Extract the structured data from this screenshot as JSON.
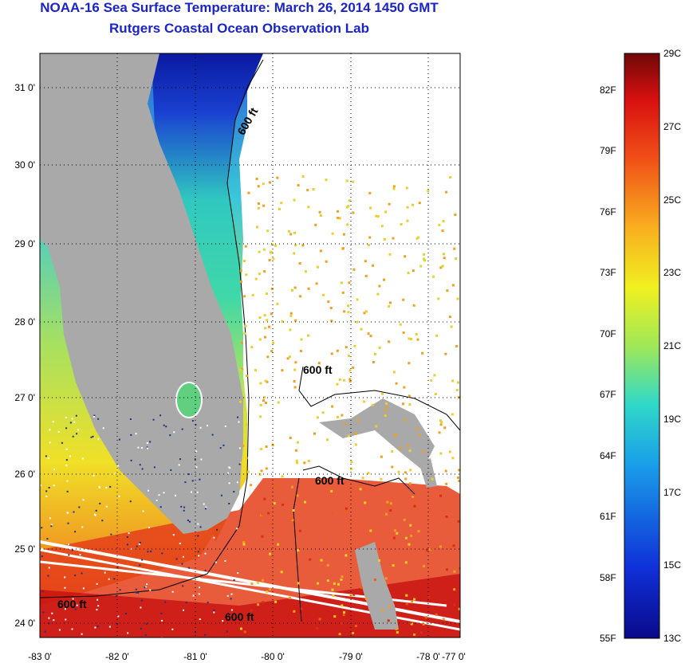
{
  "title": "NOAA-16 Sea Surface Temperature:  March 26, 2014 1450 GMT",
  "subtitle": "Rutgers Coastal Ocean Observation Lab",
  "lat_labels": [
    "31 0'",
    "30 0'",
    "29 0'",
    "28 0'",
    "27 0'",
    "26 0'",
    "25 0'",
    "24 0'"
  ],
  "lon_labels": [
    "-83 0'",
    "-82 0'",
    "-81 0'",
    "-80 0'",
    "-79 0'",
    "-78 0'",
    "-77 0'"
  ],
  "depth_labels": [
    "600 ft",
    "600 ft",
    "600 ft",
    "600 ft",
    "600 ft"
  ],
  "colorbar": {
    "celsius": [
      "29C",
      "27C",
      "25C",
      "23C",
      "21C",
      "19C",
      "17C",
      "15C",
      "13C"
    ],
    "fahrenheit": [
      "82F",
      "79F",
      "76F",
      "73F",
      "70F",
      "67F",
      "64F",
      "61F",
      "58F",
      "55F"
    ]
  },
  "colors": {
    "land": "#a9a9a9",
    "title": "#1a24c8"
  }
}
